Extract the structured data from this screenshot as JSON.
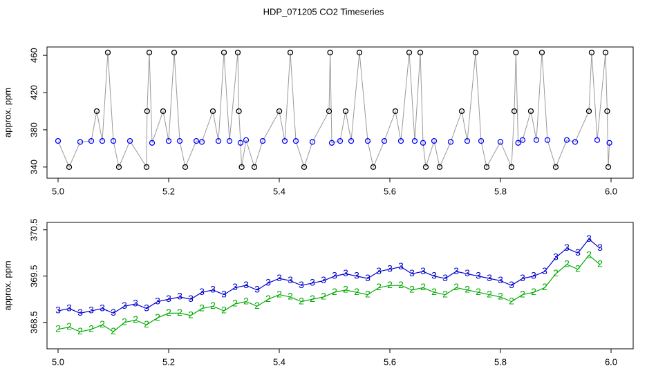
{
  "title": "HDP_071205  CO2 Timeseries",
  "chart_data": [
    {
      "type": "scatter",
      "ylabel": "approx. ppm",
      "xlim": [
        4.98,
        6.04
      ],
      "ylim": [
        328,
        469
      ],
      "xticks": [
        {
          "value": 5,
          "label": "5.0"
        },
        5.2,
        5.4,
        5.6,
        5.8,
        {
          "value": 6,
          "label": "6.0"
        }
      ],
      "yticks": [
        340,
        380,
        420,
        460
      ],
      "series": [
        {
          "color": "#0000ff",
          "line_color": "#999999",
          "x": [
            5.0,
            5.02,
            5.04,
            5.06,
            5.07,
            5.08,
            5.09,
            5.1,
            5.11,
            5.13,
            5.16,
            5.161,
            5.165,
            5.17,
            5.19,
            5.2,
            5.21,
            5.22,
            5.23,
            5.25,
            5.26,
            5.28,
            5.29,
            5.3,
            5.31,
            5.325,
            5.327,
            5.33,
            5.332,
            5.34,
            5.355,
            5.37,
            5.4,
            5.41,
            5.42,
            5.43,
            5.445,
            5.46,
            5.49,
            5.492,
            5.495,
            5.51,
            5.52,
            5.53,
            5.545,
            5.56,
            5.57,
            5.59,
            5.61,
            5.62,
            5.635,
            5.645,
            5.655,
            5.66,
            5.665,
            5.68,
            5.69,
            5.71,
            5.73,
            5.74,
            5.755,
            5.765,
            5.775,
            5.8,
            5.82,
            5.825,
            5.828,
            5.832,
            5.84,
            5.855,
            5.865,
            5.875,
            5.885,
            5.9,
            5.92,
            5.935,
            5.96,
            5.965,
            5.975,
            5.99,
            5.993,
            5.995,
            5.997
          ],
          "values": [
            368,
            340,
            367,
            368,
            400,
            368,
            463,
            368,
            340,
            368,
            340,
            400,
            463,
            366,
            400,
            368,
            463,
            368,
            340,
            368,
            367,
            400,
            368,
            463,
            368,
            463,
            400,
            366,
            340,
            369,
            340,
            368,
            400,
            368,
            463,
            368,
            340,
            367,
            400,
            463,
            366,
            368,
            400,
            368,
            463,
            368,
            340,
            368,
            400,
            368,
            463,
            368,
            463,
            366,
            340,
            368,
            340,
            367,
            400,
            368,
            463,
            368,
            340,
            367,
            340,
            400,
            463,
            366,
            369,
            400,
            369,
            463,
            369,
            340,
            369,
            367,
            400,
            463,
            369,
            463,
            400,
            340,
            366
          ]
        }
      ]
    },
    {
      "type": "line",
      "ylabel": "approx. ppm",
      "xlim": [
        4.98,
        6.04
      ],
      "ylim": [
        367.93,
        370.66
      ],
      "xticks": [
        {
          "value": 5,
          "label": "5.0"
        },
        5.2,
        5.4,
        5.6,
        5.8,
        {
          "value": 6,
          "label": "6.0"
        }
      ],
      "yticks": [
        368.5,
        369.5,
        370.5
      ],
      "x": [
        5.0,
        5.02,
        5.04,
        5.06,
        5.08,
        5.1,
        5.12,
        5.14,
        5.16,
        5.18,
        5.2,
        5.22,
        5.24,
        5.26,
        5.28,
        5.3,
        5.32,
        5.34,
        5.36,
        5.38,
        5.4,
        5.42,
        5.44,
        5.46,
        5.48,
        5.5,
        5.52,
        5.54,
        5.56,
        5.58,
        5.6,
        5.62,
        5.64,
        5.66,
        5.68,
        5.7,
        5.72,
        5.74,
        5.76,
        5.78,
        5.8,
        5.82,
        5.84,
        5.86,
        5.88,
        5.9,
        5.92,
        5.94,
        5.96,
        5.98
      ],
      "series": [
        {
          "marker": "3",
          "color": "#0000cc",
          "values": [
            368.75,
            368.8,
            368.7,
            368.75,
            368.8,
            368.7,
            368.85,
            368.9,
            368.8,
            368.95,
            369.0,
            369.05,
            369.0,
            369.15,
            369.2,
            369.1,
            369.25,
            369.3,
            369.2,
            369.35,
            369.45,
            369.4,
            369.3,
            369.35,
            369.4,
            369.5,
            369.55,
            369.5,
            369.45,
            369.6,
            369.65,
            369.7,
            369.55,
            369.6,
            369.5,
            369.45,
            369.6,
            369.55,
            369.5,
            369.45,
            369.4,
            369.3,
            369.45,
            369.5,
            369.6,
            369.9,
            370.1,
            370.0,
            370.3,
            370.1
          ]
        },
        {
          "marker": "2",
          "color": "#00aa00",
          "values": [
            368.35,
            368.4,
            368.3,
            368.35,
            368.45,
            368.3,
            368.5,
            368.55,
            368.45,
            368.6,
            368.7,
            368.7,
            368.65,
            368.8,
            368.85,
            368.75,
            368.9,
            368.95,
            368.85,
            369.0,
            369.1,
            369.05,
            368.95,
            369.0,
            369.05,
            369.15,
            369.2,
            369.15,
            369.1,
            369.25,
            369.3,
            369.3,
            369.2,
            369.25,
            369.15,
            369.1,
            369.25,
            369.2,
            369.15,
            369.1,
            369.05,
            368.95,
            369.1,
            369.15,
            369.25,
            369.55,
            369.75,
            369.65,
            369.95,
            369.75
          ]
        }
      ]
    }
  ]
}
